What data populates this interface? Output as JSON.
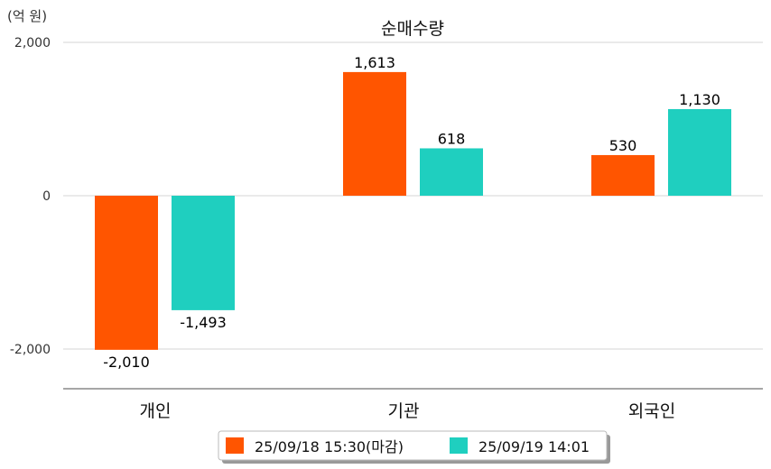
{
  "chart_data": {
    "type": "bar",
    "title": "순매수량",
    "unit_label": "(억 원)",
    "categories": [
      "개인",
      "기관",
      "외국인"
    ],
    "series": [
      {
        "name": "25/09/18 15:30(마감)",
        "color": "#FF5500",
        "values": [
          -2010,
          1613,
          530
        ],
        "labels": [
          "-2,010",
          "1,613",
          "530"
        ]
      },
      {
        "name": "25/09/19 14:01",
        "color": "#1FCFBF",
        "values": [
          -1493,
          618,
          1130
        ],
        "labels": [
          "-1,493",
          "618",
          "1,130"
        ]
      }
    ],
    "yticks": [
      2000,
      0,
      -2000
    ],
    "ytick_labels": [
      "2,000",
      "0",
      "-2,000"
    ],
    "ylim": [
      -2500,
      2000
    ],
    "grid": true,
    "legend_position": "bottom-center"
  }
}
